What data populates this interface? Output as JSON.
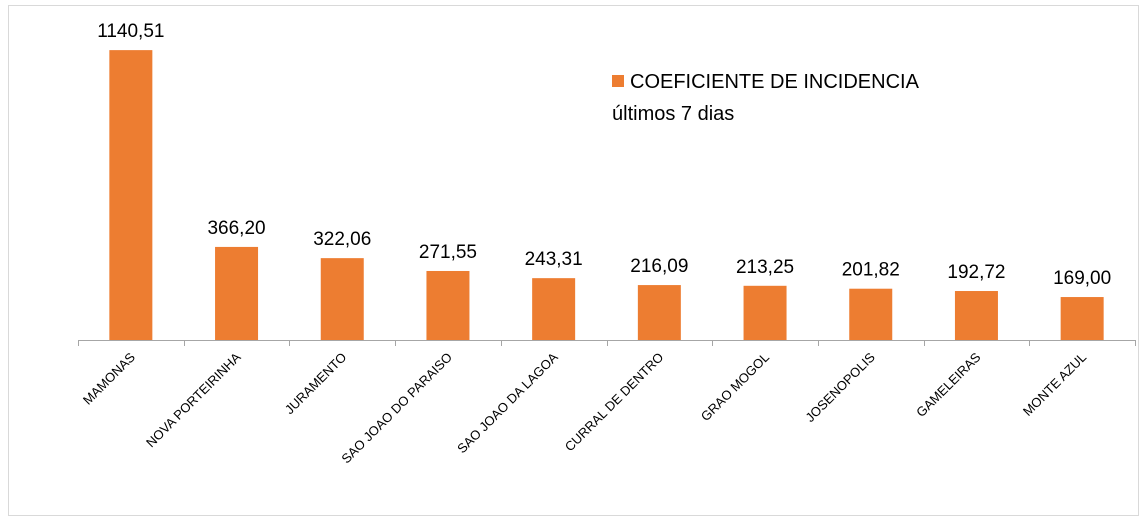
{
  "chart_data": {
    "type": "bar",
    "categories": [
      "MAMONAS",
      "NOVA PORTEIRINHA",
      "JURAMENTO",
      "SAO JOAO DO PARAISO",
      "SAO JOAO DA LAGOA",
      "CURRAL DE DENTRO",
      "GRAO MOGOL",
      "JOSENOPOLIS",
      "GAMELEIRAS",
      "MONTE AZUL"
    ],
    "series": [
      {
        "name": "COEFICIENTE DE INCIDENCIA últimos 7 dias",
        "color": "#ed7d31",
        "values": [
          1140.51,
          366.2,
          322.06,
          271.55,
          243.31,
          216.09,
          213.25,
          201.82,
          192.72,
          169.0
        ],
        "value_labels": [
          "1140,51",
          "366,20",
          "322,06",
          "271,55",
          "243,31",
          "216,09",
          "213,25",
          "201,82",
          "192,72",
          "169,00"
        ]
      }
    ],
    "ylim": [
      0,
      1200
    ],
    "legend": "top-right"
  }
}
